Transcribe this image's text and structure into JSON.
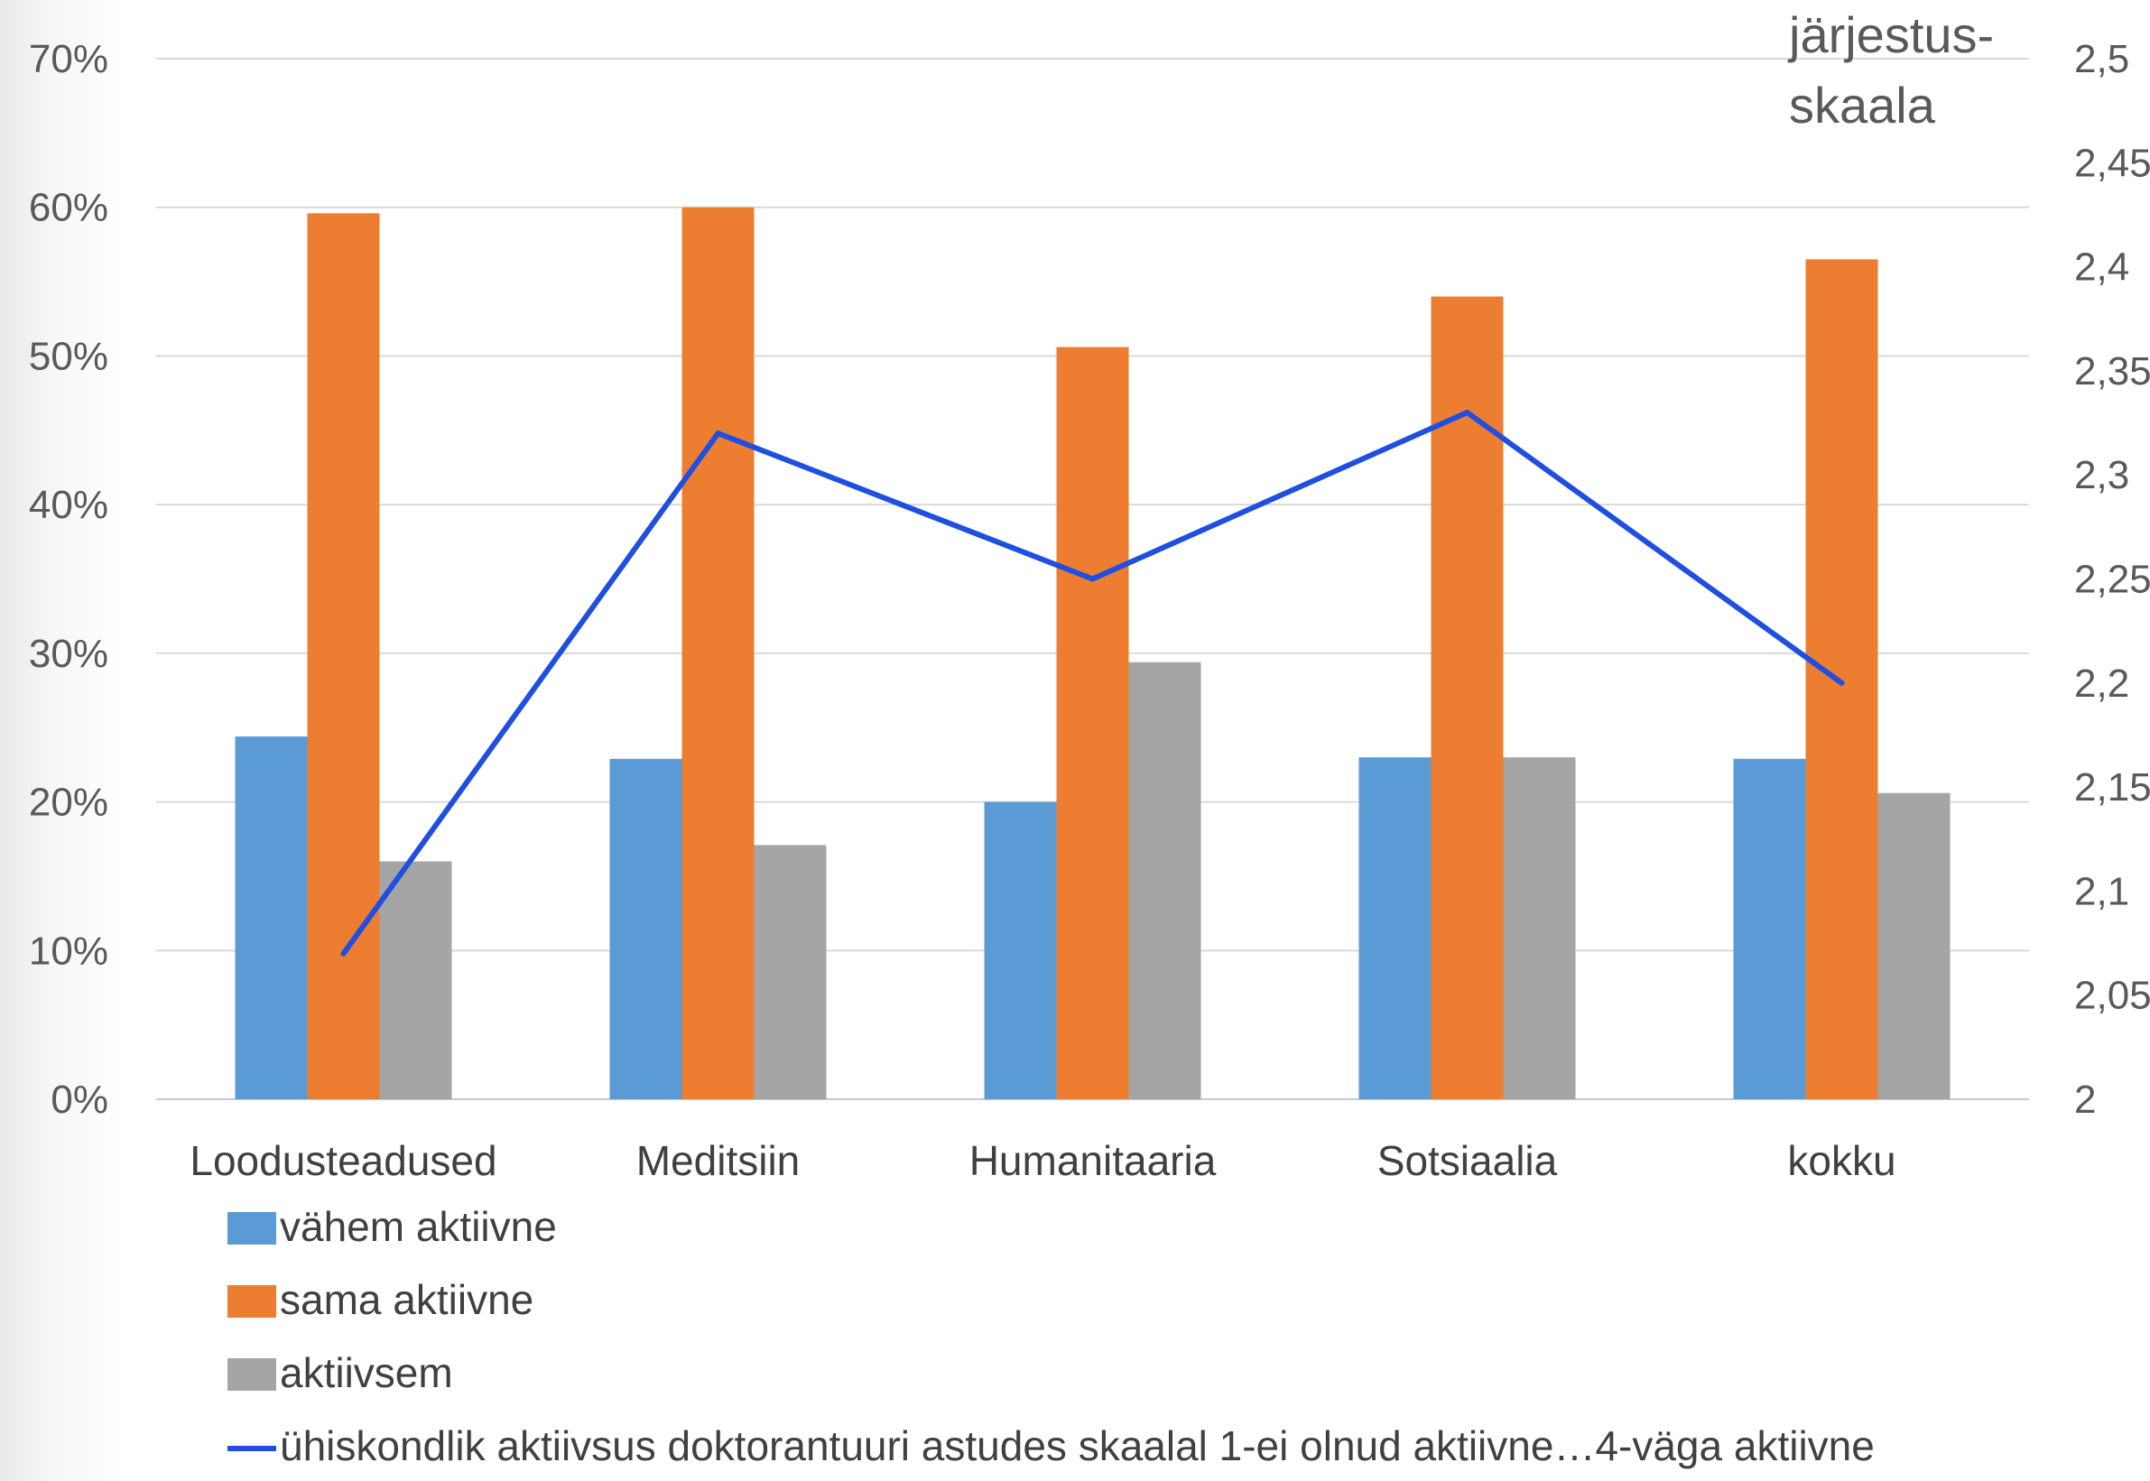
{
  "chart_data": {
    "type": "bar",
    "categories": [
      "Loodusteadused",
      "Meditsiin",
      "Humanitaaria",
      "Sotsiaalia",
      "kokku"
    ],
    "series": [
      {
        "name": "vähem aktiivne",
        "kind": "bar",
        "axis": "left",
        "color": "#5B9BD5",
        "values": [
          0.244,
          0.229,
          0.2,
          0.23,
          0.229
        ]
      },
      {
        "name": "sama aktiivne",
        "kind": "bar",
        "axis": "left",
        "color": "#ED7D31",
        "values": [
          0.596,
          0.6,
          0.506,
          0.54,
          0.565
        ]
      },
      {
        "name": "aktiivsem",
        "kind": "bar",
        "axis": "left",
        "color": "#A5A5A5",
        "values": [
          0.16,
          0.171,
          0.294,
          0.23,
          0.206
        ]
      },
      {
        "name": "ühiskondlik aktiivsus doktorantuuri astudes skaalal 1-ei olnud aktiivne…4-väga aktiivne",
        "kind": "line",
        "axis": "right",
        "color": "#1F4FE0",
        "values": [
          2.07,
          2.32,
          2.25,
          2.33,
          2.2
        ]
      }
    ],
    "y_left": {
      "range": [
        0,
        0.7
      ],
      "ticks": [
        0,
        0.1,
        0.2,
        0.3,
        0.4,
        0.5,
        0.6,
        0.7
      ],
      "tick_labels": [
        "0%",
        "10%",
        "20%",
        "30%",
        "40%",
        "50%",
        "60%",
        "70%"
      ]
    },
    "y_right": {
      "range": [
        2,
        2.5
      ],
      "ticks": [
        2,
        2.05,
        2.1,
        2.15,
        2.2,
        2.25,
        2.3,
        2.35,
        2.4,
        2.45,
        2.5
      ],
      "tick_labels": [
        "2",
        "2,05",
        "2,1",
        "2,15",
        "2,2",
        "2,25",
        "2,3",
        "2,35",
        "2,4",
        "2,45",
        "2,5"
      ],
      "title_lines": [
        "järjestus-",
        "skaala"
      ]
    },
    "grid": true,
    "legend_position": "bottom-left"
  }
}
